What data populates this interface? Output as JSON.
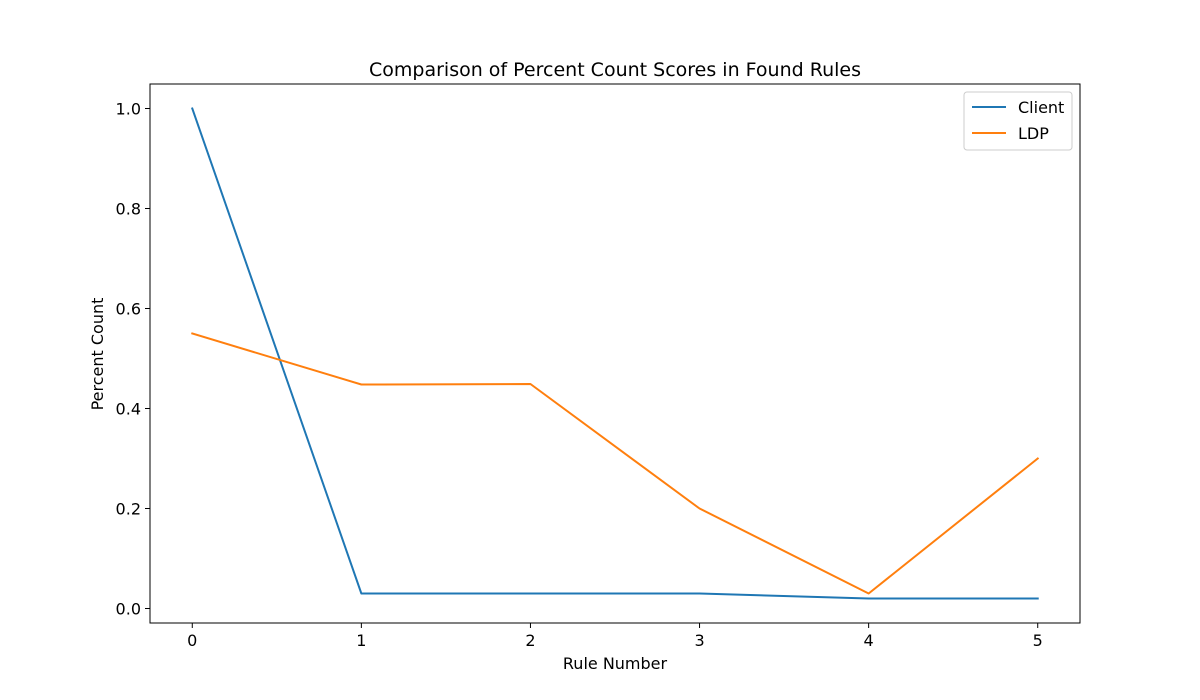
{
  "chart_data": {
    "type": "line",
    "title": "Comparison of Percent Count Scores in Found Rules",
    "xlabel": "Rule Number",
    "ylabel": "Percent Count",
    "x": [
      0,
      1,
      2,
      3,
      4,
      5
    ],
    "xlim": [
      -0.25,
      5.25
    ],
    "ylim": [
      -0.029,
      1.049
    ],
    "xticks": [
      "0",
      "1",
      "2",
      "3",
      "4",
      "5"
    ],
    "yticks": [
      "0.0",
      "0.2",
      "0.4",
      "0.6",
      "0.8",
      "1.0"
    ],
    "grid": false,
    "legend_position": "top-right",
    "series": [
      {
        "name": "Client",
        "color": "#1f77b4",
        "values": [
          1.0,
          0.03,
          0.03,
          0.03,
          0.02,
          0.02
        ]
      },
      {
        "name": "LDP",
        "color": "#ff7f0e",
        "values": [
          0.55,
          0.448,
          0.449,
          0.2,
          0.03,
          0.3
        ]
      }
    ]
  }
}
